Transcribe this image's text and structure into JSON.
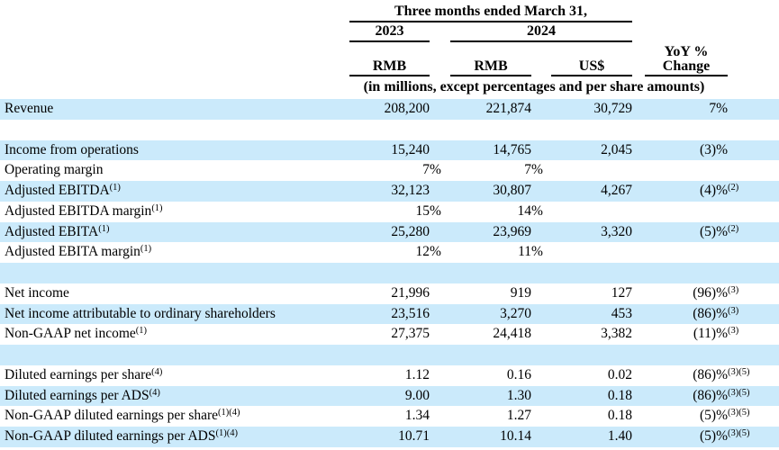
{
  "header": {
    "period": "Three months ended March 31,",
    "years": {
      "y2023": "2023",
      "y2024": "2024"
    },
    "columns": {
      "rmb_2023": "RMB",
      "rmb_2024": "RMB",
      "usd": "US$",
      "yoy_line1": "YoY %",
      "yoy_line2": "Change"
    },
    "units_note": "(in millions, except percentages and per share amounts)"
  },
  "colors": {
    "row_shade": "#cbeafb",
    "text": "#000000",
    "rule": "#000000"
  },
  "table": {
    "rows": [
      {
        "label": "Revenue",
        "label_sup": "",
        "rmb2023": "208,200",
        "rmb2024": "221,874",
        "usd": "30,729",
        "yoy": "7%",
        "yoy_sup": "",
        "shaded": true
      },
      {
        "label": "",
        "label_sup": "",
        "rmb2023": "",
        "rmb2024": "",
        "usd": "",
        "yoy": "",
        "yoy_sup": "",
        "shaded": false
      },
      {
        "label": "Income from operations",
        "label_sup": "",
        "rmb2023": "15,240",
        "rmb2024": "14,765",
        "usd": "2,045",
        "yoy": "(3)%",
        "yoy_sup": "",
        "shaded": true
      },
      {
        "label": "Operating margin",
        "label_sup": "",
        "rmb2023": "7%",
        "rmb2024": "7%",
        "usd": "",
        "yoy": "",
        "yoy_sup": "",
        "shaded": false
      },
      {
        "label": "Adjusted EBITDA",
        "label_sup": "(1)",
        "rmb2023": "32,123",
        "rmb2024": "30,807",
        "usd": "4,267",
        "yoy": "(4)%",
        "yoy_sup": "(2)",
        "shaded": true
      },
      {
        "label": "Adjusted EBITDA margin",
        "label_sup": "(1)",
        "rmb2023": "15%",
        "rmb2024": "14%",
        "usd": "",
        "yoy": "",
        "yoy_sup": "",
        "shaded": false
      },
      {
        "label": "Adjusted EBITA",
        "label_sup": "(1)",
        "rmb2023": "25,280",
        "rmb2024": "23,969",
        "usd": "3,320",
        "yoy": "(5)%",
        "yoy_sup": "(2)",
        "shaded": true
      },
      {
        "label": "Adjusted EBITA margin",
        "label_sup": "(1)",
        "rmb2023": "12%",
        "rmb2024": "11%",
        "usd": "",
        "yoy": "",
        "yoy_sup": "",
        "shaded": false
      },
      {
        "label": "",
        "label_sup": "",
        "rmb2023": "",
        "rmb2024": "",
        "usd": "",
        "yoy": "",
        "yoy_sup": "",
        "shaded": true
      },
      {
        "label": "Net income",
        "label_sup": "",
        "rmb2023": "21,996",
        "rmb2024": "919",
        "usd": "127",
        "yoy": "(96)%",
        "yoy_sup": "(3)",
        "shaded": false
      },
      {
        "label": "Net income attributable to ordinary shareholders",
        "label_sup": "",
        "rmb2023": "23,516",
        "rmb2024": "3,270",
        "usd": "453",
        "yoy": "(86)%",
        "yoy_sup": "(3)",
        "shaded": true
      },
      {
        "label": "Non-GAAP net income",
        "label_sup": "(1)",
        "rmb2023": "27,375",
        "rmb2024": "24,418",
        "usd": "3,382",
        "yoy": "(11)%",
        "yoy_sup": "(3)",
        "shaded": false
      },
      {
        "label": "",
        "label_sup": "",
        "rmb2023": "",
        "rmb2024": "",
        "usd": "",
        "yoy": "",
        "yoy_sup": "",
        "shaded": true
      },
      {
        "label": "Diluted earnings per share",
        "label_sup": "(4)",
        "rmb2023": "1.12",
        "rmb2024": "0.16",
        "usd": "0.02",
        "yoy": "(86)%",
        "yoy_sup": "(3)(5)",
        "shaded": false
      },
      {
        "label": "Diluted earnings per ADS",
        "label_sup": "(4)",
        "rmb2023": "9.00",
        "rmb2024": "1.30",
        "usd": "0.18",
        "yoy": "(86)%",
        "yoy_sup": "(3)(5)",
        "shaded": true
      },
      {
        "label": "Non-GAAP diluted earnings per share",
        "label_sup": "(1)(4)",
        "rmb2023": "1.34",
        "rmb2024": "1.27",
        "usd": "0.18",
        "yoy": "(5)%",
        "yoy_sup": "(3)(5)",
        "shaded": false
      },
      {
        "label": "Non-GAAP diluted earnings per ADS",
        "label_sup": "(1)(4)",
        "rmb2023": "10.71",
        "rmb2024": "10.14",
        "usd": "1.40",
        "yoy": "(5)%",
        "yoy_sup": "(3)(5)",
        "shaded": true
      }
    ]
  }
}
